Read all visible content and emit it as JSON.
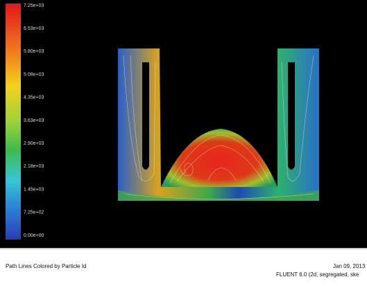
{
  "colorbar": {
    "labels": [
      "7.25e+03",
      "6.53e+03",
      "5.80e+03",
      "5.08e+03",
      "4.35e+03",
      "3.63e+03",
      "2.90e+03",
      "2.18e+03",
      "1.45e+03",
      "7.25e+02",
      "0.00e+00"
    ]
  },
  "footer": {
    "caption": "Path Lines Colored by Particle Id",
    "date": "Jan 09, 2013",
    "solver": "FLUENT 6.0 (2d, segregated, ske"
  }
}
